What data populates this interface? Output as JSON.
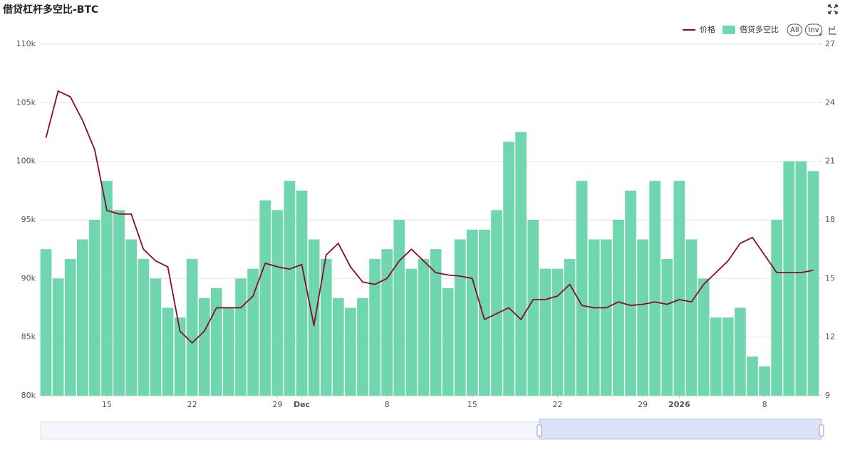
{
  "chart_data": {
    "type": "combo",
    "title": "借贷杠杆多空比-BTC",
    "buttons": [
      "All",
      "Inv"
    ],
    "x": [
      "2025-11-10",
      "2025-11-11",
      "2025-11-12",
      "2025-11-13",
      "2025-11-14",
      "2025-11-15",
      "2025-11-16",
      "2025-11-17",
      "2025-11-18",
      "2025-11-19",
      "2025-11-20",
      "2025-11-21",
      "2025-11-22",
      "2025-11-23",
      "2025-11-24",
      "2025-11-25",
      "2025-11-26",
      "2025-11-27",
      "2025-11-28",
      "2025-11-29",
      "2025-11-30",
      "2025-12-01",
      "2025-12-02",
      "2025-12-03",
      "2025-12-04",
      "2025-12-05",
      "2025-12-06",
      "2025-12-07",
      "2025-12-08",
      "2025-12-09",
      "2025-12-10",
      "2025-12-11",
      "2025-12-12",
      "2025-12-13",
      "2025-12-14",
      "2025-12-15",
      "2025-12-16",
      "2025-12-17",
      "2025-12-18",
      "2025-12-19",
      "2025-12-20",
      "2025-12-21",
      "2025-12-22",
      "2025-12-23",
      "2025-12-24",
      "2025-12-25",
      "2025-12-26",
      "2025-12-27",
      "2025-12-28",
      "2025-12-29",
      "2025-12-30",
      "2025-12-31",
      "2026-01-01",
      "2026-01-02",
      "2026-01-03",
      "2026-01-04",
      "2026-01-05",
      "2026-01-06",
      "2026-01-07",
      "2026-01-08",
      "2026-01-09",
      "2026-01-10",
      "2026-01-11",
      "2026-01-12"
    ],
    "xlim": [
      "2025-11-09T12:00:00Z",
      "2026-01-12T12:00:00Z"
    ],
    "xticks": [
      {
        "value": "2025-11-15",
        "label": "15"
      },
      {
        "value": "2025-11-22",
        "label": "22"
      },
      {
        "value": "2025-11-29",
        "label": "29"
      },
      {
        "value": "2025-12-01",
        "label": "Dec"
      },
      {
        "value": "2025-12-08",
        "label": "8"
      },
      {
        "value": "2025-12-15",
        "label": "15"
      },
      {
        "value": "2025-12-22",
        "label": "22"
      },
      {
        "value": "2025-12-29",
        "label": "29"
      },
      {
        "value": "2026-01-01",
        "label": "2026"
      },
      {
        "value": "2026-01-08",
        "label": "8"
      }
    ],
    "ylim": [
      80000,
      110000
    ],
    "yticks": [
      {
        "value": 80000,
        "label": "80k"
      },
      {
        "value": 85000,
        "label": "85k"
      },
      {
        "value": 90000,
        "label": "90k"
      },
      {
        "value": 95000,
        "label": "95k"
      },
      {
        "value": 100000,
        "label": "100k"
      },
      {
        "value": 105000,
        "label": "105k"
      },
      {
        "value": 110000,
        "label": "110k"
      }
    ],
    "y2lim": [
      9,
      27
    ],
    "y2ticks": [
      9,
      12,
      15,
      18,
      21,
      24,
      27
    ],
    "grid": true,
    "legend": "top-right",
    "series": [
      {
        "name": "价格",
        "type": "line",
        "color": "#8b0a2a",
        "values": [
          102000,
          106000,
          105500,
          103500,
          101000,
          95800,
          95500,
          95500,
          92500,
          91500,
          91000,
          85500,
          84500,
          85500,
          87500,
          87500,
          87500,
          88500,
          91300,
          91000,
          90800,
          91200,
          86000,
          92000,
          93000,
          91000,
          89700,
          89500,
          90000,
          91500,
          92500,
          91500,
          90500,
          90300,
          90200,
          90000,
          86500,
          87000,
          87500,
          86500,
          88200,
          88200,
          88500,
          89500,
          87700,
          87500,
          87500,
          88000,
          87700,
          87800,
          88000,
          87800,
          88200,
          88000,
          89500,
          90500,
          91500,
          93000,
          93500,
          92000,
          90500,
          90500,
          90500,
          90700
        ]
      },
      {
        "name": "借贷多空比",
        "type": "bar",
        "axis": "y2",
        "color": "#6fd6b0",
        "values": [
          16.5,
          15,
          16,
          17,
          18,
          20,
          18.5,
          17,
          16,
          15,
          13.5,
          13,
          16,
          14,
          14.5,
          13.5,
          15,
          15.5,
          19,
          18.5,
          20,
          19.5,
          17,
          16,
          14,
          13.5,
          14,
          16,
          16.5,
          18,
          15.5,
          16,
          16.5,
          14.5,
          17,
          17.5,
          17.5,
          18.5,
          22,
          22.5,
          18,
          15.5,
          15.5,
          16,
          20,
          17,
          17,
          18,
          19.5,
          17,
          20,
          16,
          20,
          17,
          15,
          13,
          13,
          13.5,
          11,
          10.5,
          18,
          21,
          21,
          20.5
        ]
      }
    ]
  }
}
